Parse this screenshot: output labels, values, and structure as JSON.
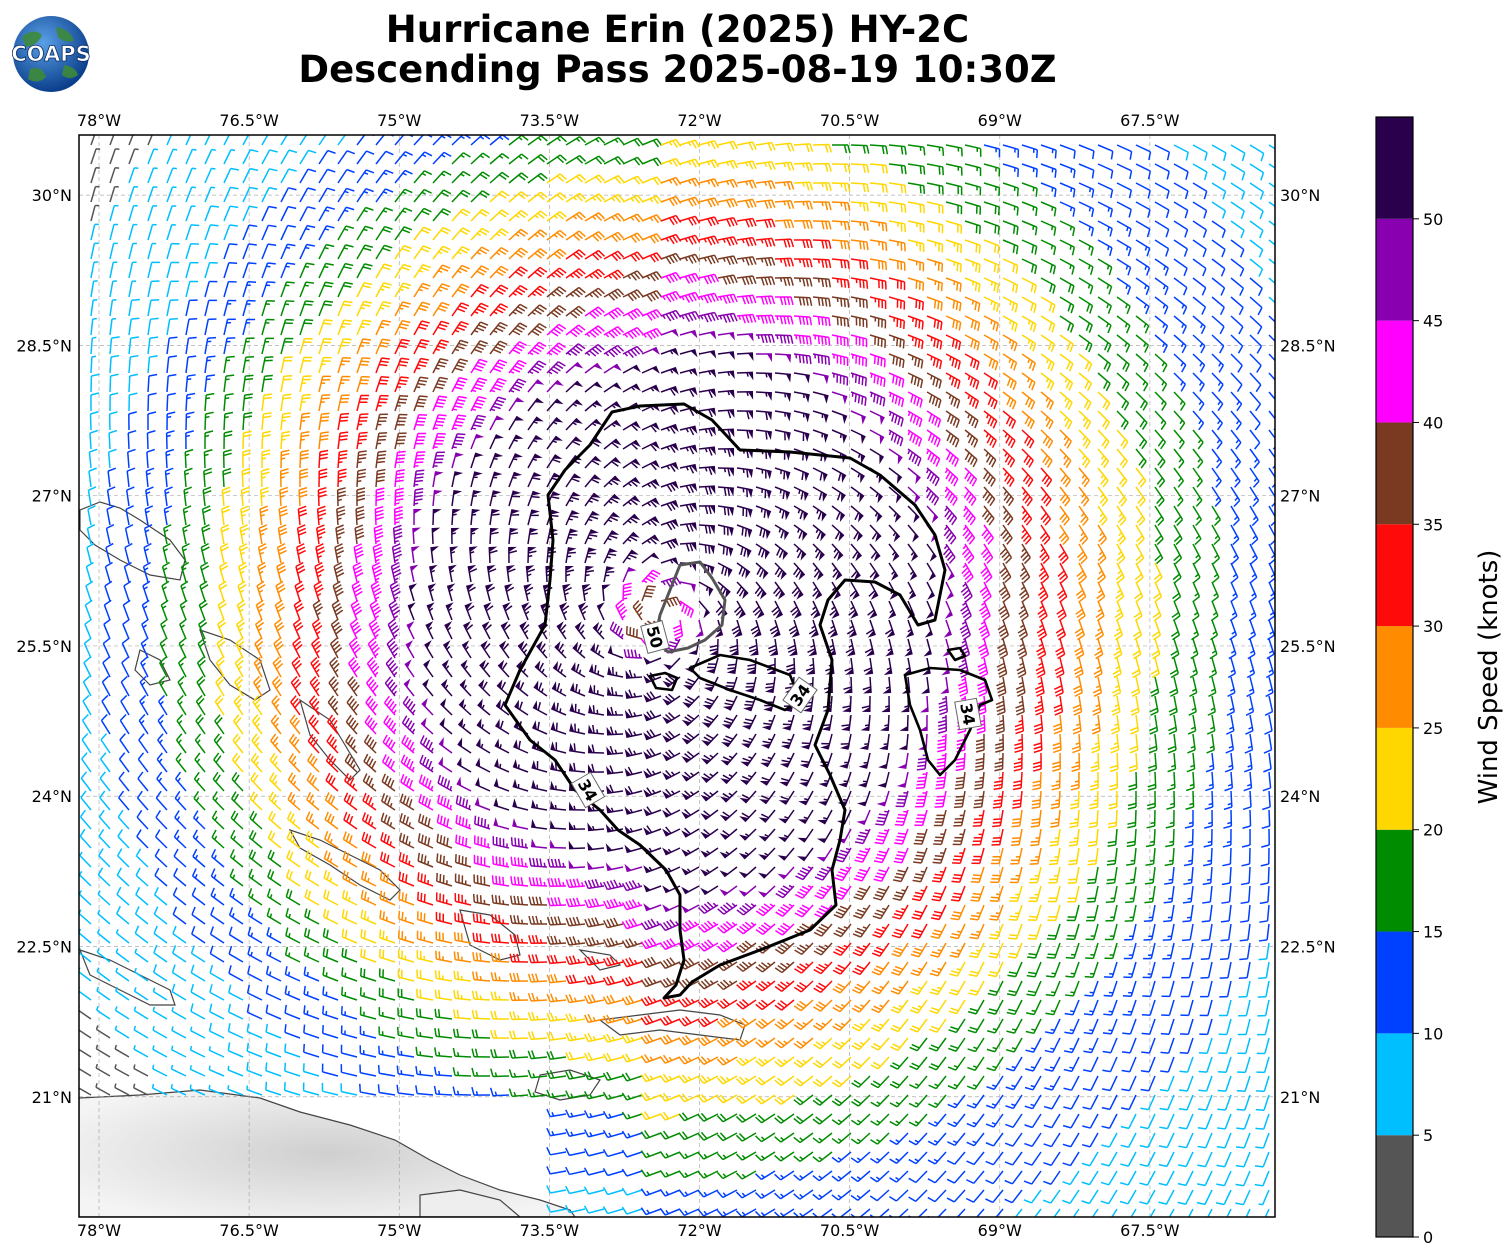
{
  "title": {
    "line1": "Hurricane Erin (2025) HY-2C",
    "line2": "Descending Pass 2025-08-19 10:30Z"
  },
  "logo": {
    "text": "COAPS",
    "icon": "globe-logo-icon"
  },
  "map": {
    "lon_min": -78.2,
    "lon_max": -66.25,
    "lat_max": 30.6,
    "lat_min": 19.8,
    "lon_ticks": [
      "78°W",
      "76.5°W",
      "75°W",
      "73.5°W",
      "72°W",
      "70.5°W",
      "69°W",
      "67.5°W"
    ],
    "lon_tick_values": [
      -78,
      -76.5,
      -75,
      -73.5,
      -72,
      -70.5,
      -69,
      -67.5
    ],
    "lat_ticks": [
      "30°N",
      "28.5°N",
      "27°N",
      "25.5°N",
      "24°N",
      "22.5°N",
      "21°N"
    ],
    "lat_tick_values": [
      30,
      28.5,
      27,
      25.5,
      24,
      22.5,
      21
    ],
    "gridlines": true,
    "storm_center": {
      "lon": -72.4,
      "lat": 25.8
    },
    "contour_labels": [
      "34",
      "34",
      "34",
      "50"
    ]
  },
  "colorbar": {
    "label": "Wind Speed (knots)",
    "ticks": [
      "0",
      "5",
      "10",
      "15",
      "20",
      "25",
      "30",
      "35",
      "40",
      "45",
      "50"
    ],
    "bins": [
      {
        "min": 0,
        "max": 5,
        "color": "#555555"
      },
      {
        "min": 5,
        "max": 10,
        "color": "#00bfff"
      },
      {
        "min": 10,
        "max": 15,
        "color": "#0040ff"
      },
      {
        "min": 15,
        "max": 20,
        "color": "#008c00"
      },
      {
        "min": 20,
        "max": 25,
        "color": "#ffd700"
      },
      {
        "min": 25,
        "max": 30,
        "color": "#ff8c00"
      },
      {
        "min": 30,
        "max": 35,
        "color": "#ff0a0a"
      },
      {
        "min": 35,
        "max": 40,
        "color": "#7a3a22"
      },
      {
        "min": 40,
        "max": 45,
        "color": "#ff00ff"
      },
      {
        "min": 45,
        "max": 50,
        "color": "#8800b0"
      },
      {
        "min": 50,
        "max": 55,
        "color": "#2a004d"
      }
    ]
  }
}
